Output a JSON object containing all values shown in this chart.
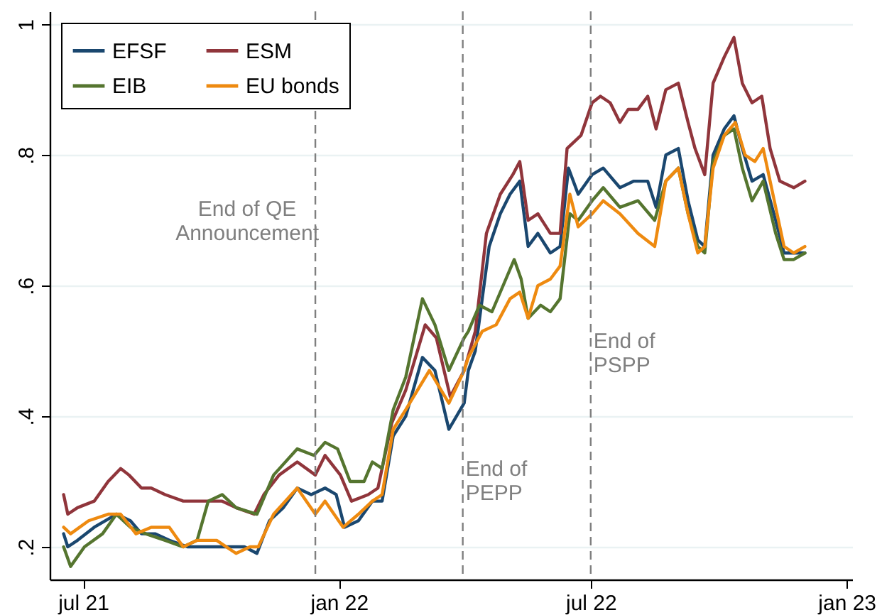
{
  "chart_data": {
    "type": "line",
    "legend": "top left",
    "grid": "y",
    "line_style": "solid",
    "xlim": [
      "2021-06-07",
      "2023-01-05"
    ],
    "ylim": [
      0.15,
      1.02
    ],
    "xticks": [
      {
        "value": "2021-07-01",
        "label": "jul 21"
      },
      {
        "value": "2022-01-01",
        "label": "jan 22"
      },
      {
        "value": "2022-07-01",
        "label": "jul 22"
      },
      {
        "value": "2023-01-01",
        "label": "jan 23"
      }
    ],
    "yticks": [
      {
        "value": 0.2,
        "label": ".2"
      },
      {
        "value": 0.4,
        "label": ".4"
      },
      {
        "value": 0.6,
        "label": ".6"
      },
      {
        "value": 0.8,
        "label": ".8"
      },
      {
        "value": 1,
        "label": "1"
      }
    ],
    "ref_lines": [
      {
        "axis": "x",
        "value": "2021-12-15",
        "label": "End of QE\nAnnouncement",
        "color": "#7f7f7f",
        "line_style": "dashed"
      },
      {
        "axis": "x",
        "value": "2022-03-31",
        "label": "End of\nPEPP",
        "color": "#7f7f7f",
        "line_style": "dashed"
      },
      {
        "axis": "x",
        "value": "2022-07-01",
        "label": "End of\nPSPP",
        "color": "#7f7f7f",
        "line_style": "dashed"
      }
    ],
    "series": [
      {
        "name": "EFSF",
        "color": "#1a476f",
        "x": [
          "2021-06-17",
          "2021-06-20",
          "2021-06-27",
          "2021-07-09",
          "2021-07-25",
          "2021-08-04",
          "2021-08-12",
          "2021-08-22",
          "2021-09-01",
          "2021-09-14",
          "2021-09-26",
          "2021-10-09",
          "2021-10-19",
          "2021-10-25",
          "2021-11-03",
          "2021-11-12",
          "2021-11-22",
          "2021-12-02",
          "2021-12-12",
          "2021-12-22",
          "2021-12-30",
          "2022-01-05",
          "2022-01-15",
          "2022-01-25",
          "2022-02-01",
          "2022-02-09",
          "2022-02-18",
          "2022-03-02",
          "2022-03-11",
          "2022-03-21",
          "2022-04-01",
          "2022-04-04",
          "2022-04-09",
          "2022-04-19",
          "2022-04-27",
          "2022-05-04",
          "2022-05-11",
          "2022-05-17",
          "2022-05-24",
          "2022-06-02",
          "2022-06-09",
          "2022-06-15",
          "2022-06-22",
          "2022-07-02",
          "2022-07-10",
          "2022-07-22",
          "2022-08-01",
          "2022-08-11",
          "2022-08-17",
          "2022-08-24",
          "2022-09-02",
          "2022-09-09",
          "2022-09-16",
          "2022-09-21",
          "2022-09-27",
          "2022-10-05",
          "2022-10-12",
          "2022-10-18",
          "2022-10-25",
          "2022-11-02",
          "2022-11-11",
          "2022-11-17",
          "2022-11-24",
          "2022-12-02"
        ],
        "values": [
          0.22,
          0.2,
          0.21,
          0.23,
          0.25,
          0.24,
          0.22,
          0.22,
          0.21,
          0.2,
          0.2,
          0.2,
          0.2,
          0.2,
          0.19,
          0.24,
          0.26,
          0.29,
          0.28,
          0.29,
          0.28,
          0.23,
          0.24,
          0.27,
          0.27,
          0.37,
          0.4,
          0.49,
          0.47,
          0.38,
          0.42,
          0.47,
          0.5,
          0.66,
          0.71,
          0.74,
          0.76,
          0.66,
          0.68,
          0.65,
          0.66,
          0.78,
          0.74,
          0.77,
          0.78,
          0.75,
          0.76,
          0.76,
          0.72,
          0.8,
          0.81,
          0.73,
          0.67,
          0.66,
          0.8,
          0.84,
          0.86,
          0.81,
          0.76,
          0.77,
          0.7,
          0.65,
          0.65,
          0.65
        ]
      },
      {
        "name": "ESM",
        "color": "#90353b",
        "x": [
          "2021-06-17",
          "2021-06-20",
          "2021-06-27",
          "2021-07-09",
          "2021-07-19",
          "2021-07-28",
          "2021-08-03",
          "2021-08-12",
          "2021-08-19",
          "2021-08-29",
          "2021-09-11",
          "2021-09-21",
          "2021-09-29",
          "2021-10-09",
          "2021-10-19",
          "2021-11-01",
          "2021-11-08",
          "2021-11-19",
          "2021-12-02",
          "2021-12-15",
          "2021-12-22",
          "2022-01-02",
          "2022-01-10",
          "2022-01-22",
          "2022-01-29",
          "2022-02-08",
          "2022-02-18",
          "2022-03-04",
          "2022-03-12",
          "2022-03-22",
          "2022-04-01",
          "2022-04-09",
          "2022-04-17",
          "2022-04-27",
          "2022-05-06",
          "2022-05-11",
          "2022-05-17",
          "2022-05-24",
          "2022-06-02",
          "2022-06-09",
          "2022-06-14",
          "2022-06-24",
          "2022-07-02",
          "2022-07-08",
          "2022-07-15",
          "2022-07-22",
          "2022-07-28",
          "2022-08-04",
          "2022-08-11",
          "2022-08-17",
          "2022-08-24",
          "2022-09-02",
          "2022-09-09",
          "2022-09-14",
          "2022-09-21",
          "2022-09-27",
          "2022-10-05",
          "2022-10-12",
          "2022-10-18",
          "2022-10-25",
          "2022-11-01",
          "2022-11-07",
          "2022-11-14",
          "2022-11-24",
          "2022-12-02"
        ],
        "values": [
          0.28,
          0.25,
          0.26,
          0.27,
          0.3,
          0.32,
          0.31,
          0.29,
          0.29,
          0.28,
          0.27,
          0.27,
          0.27,
          0.27,
          0.26,
          0.25,
          0.28,
          0.31,
          0.33,
          0.31,
          0.34,
          0.31,
          0.27,
          0.28,
          0.29,
          0.39,
          0.44,
          0.54,
          0.52,
          0.43,
          0.47,
          0.53,
          0.68,
          0.74,
          0.77,
          0.79,
          0.7,
          0.71,
          0.68,
          0.68,
          0.81,
          0.83,
          0.88,
          0.89,
          0.88,
          0.85,
          0.87,
          0.87,
          0.89,
          0.84,
          0.9,
          0.91,
          0.85,
          0.81,
          0.77,
          0.91,
          0.95,
          0.98,
          0.91,
          0.88,
          0.89,
          0.81,
          0.76,
          0.75,
          0.76
        ]
      },
      {
        "name": "EIB",
        "color": "#55752f",
        "x": [
          "2021-06-17",
          "2021-06-22",
          "2021-07-02",
          "2021-07-15",
          "2021-07-25",
          "2021-08-04",
          "2021-08-15",
          "2021-08-29",
          "2021-09-11",
          "2021-09-21",
          "2021-09-29",
          "2021-10-09",
          "2021-10-19",
          "2021-11-03",
          "2021-11-15",
          "2021-12-02",
          "2021-12-14",
          "2021-12-22",
          "2021-12-31",
          "2022-01-09",
          "2022-01-19",
          "2022-01-25",
          "2022-02-01",
          "2022-02-09",
          "2022-02-18",
          "2022-03-02",
          "2022-03-11",
          "2022-03-21",
          "2022-04-01",
          "2022-04-04",
          "2022-04-12",
          "2022-04-21",
          "2022-05-01",
          "2022-05-07",
          "2022-05-12",
          "2022-05-17",
          "2022-05-26",
          "2022-06-02",
          "2022-06-09",
          "2022-06-16",
          "2022-06-22",
          "2022-07-02",
          "2022-07-10",
          "2022-07-22",
          "2022-08-04",
          "2022-08-16",
          "2022-08-24",
          "2022-09-02",
          "2022-09-09",
          "2022-09-16",
          "2022-09-21",
          "2022-09-27",
          "2022-10-05",
          "2022-10-12",
          "2022-10-18",
          "2022-10-25",
          "2022-11-02",
          "2022-11-11",
          "2022-11-17",
          "2022-11-24",
          "2022-12-02"
        ],
        "values": [
          0.2,
          0.17,
          0.2,
          0.22,
          0.25,
          0.23,
          0.22,
          0.21,
          0.2,
          0.21,
          0.27,
          0.28,
          0.26,
          0.25,
          0.31,
          0.35,
          0.34,
          0.36,
          0.35,
          0.3,
          0.3,
          0.33,
          0.32,
          0.41,
          0.46,
          0.58,
          0.54,
          0.47,
          0.52,
          0.53,
          0.57,
          0.56,
          0.61,
          0.64,
          0.61,
          0.55,
          0.57,
          0.56,
          0.58,
          0.71,
          0.7,
          0.73,
          0.75,
          0.72,
          0.73,
          0.7,
          0.76,
          0.78,
          0.71,
          0.66,
          0.65,
          0.79,
          0.83,
          0.84,
          0.78,
          0.73,
          0.76,
          0.68,
          0.64,
          0.64,
          0.65
        ]
      },
      {
        "name": "EU bonds",
        "color": "#ee8a10",
        "x": [
          "2021-06-17",
          "2021-06-22",
          "2021-07-05",
          "2021-07-19",
          "2021-07-28",
          "2021-08-08",
          "2021-08-19",
          "2021-08-27",
          "2021-09-01",
          "2021-09-11",
          "2021-09-21",
          "2021-10-05",
          "2021-10-19",
          "2021-10-29",
          "2021-11-04",
          "2021-11-15",
          "2021-12-02",
          "2021-12-15",
          "2021-12-22",
          "2022-01-04",
          "2022-01-15",
          "2022-01-25",
          "2022-02-01",
          "2022-02-09",
          "2022-02-18",
          "2022-03-07",
          "2022-03-21",
          "2022-04-01",
          "2022-04-04",
          "2022-04-14",
          "2022-04-24",
          "2022-05-04",
          "2022-05-11",
          "2022-05-17",
          "2022-05-24",
          "2022-06-02",
          "2022-06-09",
          "2022-06-16",
          "2022-06-22",
          "2022-07-02",
          "2022-07-10",
          "2022-07-22",
          "2022-08-04",
          "2022-08-16",
          "2022-08-24",
          "2022-09-02",
          "2022-09-09",
          "2022-09-16",
          "2022-09-21",
          "2022-09-27",
          "2022-10-05",
          "2022-10-13",
          "2022-10-20",
          "2022-10-27",
          "2022-11-02",
          "2022-11-11",
          "2022-11-17",
          "2022-11-24",
          "2022-12-02"
        ],
        "values": [
          0.23,
          0.22,
          0.24,
          0.25,
          0.25,
          0.22,
          0.23,
          0.23,
          0.23,
          0.2,
          0.21,
          0.21,
          0.19,
          0.2,
          0.2,
          0.25,
          0.29,
          0.25,
          0.27,
          0.23,
          0.25,
          0.27,
          0.28,
          0.38,
          0.41,
          0.47,
          0.42,
          0.47,
          0.49,
          0.53,
          0.54,
          0.58,
          0.59,
          0.55,
          0.6,
          0.61,
          0.63,
          0.74,
          0.69,
          0.71,
          0.73,
          0.71,
          0.68,
          0.66,
          0.76,
          0.78,
          0.71,
          0.65,
          0.66,
          0.78,
          0.83,
          0.85,
          0.8,
          0.79,
          0.81,
          0.72,
          0.66,
          0.65,
          0.66
        ]
      }
    ]
  }
}
